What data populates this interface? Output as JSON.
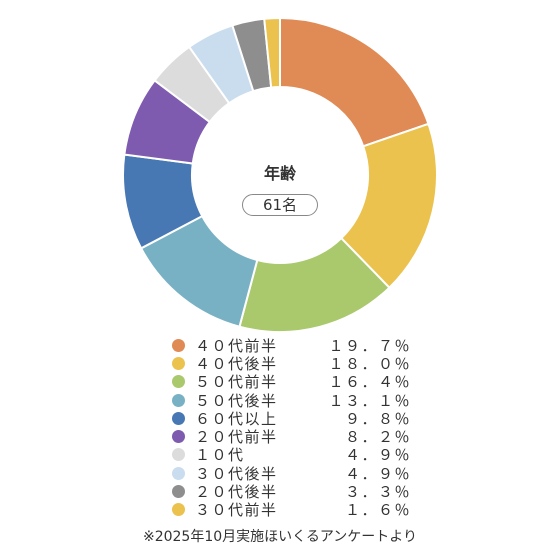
{
  "chart_data": {
    "type": "pie",
    "title": "年齢",
    "total_label": "61名",
    "slices": [
      {
        "label": "４０代前半",
        "value": 19.7,
        "value_label": "１９．７％",
        "color": "#E08A55"
      },
      {
        "label": "４０代後半",
        "value": 18.0,
        "value_label": "１８．０％",
        "color": "#EBC24E"
      },
      {
        "label": "５０代前半",
        "value": 16.4,
        "value_label": "１６．４％",
        "color": "#AAC86C"
      },
      {
        "label": "５０代後半",
        "value": 13.1,
        "value_label": "１３．１％",
        "color": "#79B1C4"
      },
      {
        "label": "６０代以上",
        "value": 9.8,
        "value_label": "９．８％",
        "color": "#4878B3"
      },
      {
        "label": "２０代前半",
        "value": 8.2,
        "value_label": "８．２％",
        "color": "#7E5BAF"
      },
      {
        "label": "１０代",
        "value": 4.9,
        "value_label": "４．９％",
        "color": "#DCDCDC"
      },
      {
        "label": "３０代後半",
        "value": 4.9,
        "value_label": "４．９％",
        "color": "#C9DDEF"
      },
      {
        "label": "２０代後半",
        "value": 3.3,
        "value_label": "３．３％",
        "color": "#8E8E8E"
      },
      {
        "label": "３０代前半",
        "value": 1.6,
        "value_label": "１．６％",
        "color": "#EBC24E"
      }
    ],
    "legend_position": "bottom"
  },
  "footnote": "※2025年10月実施ほいくるアンケートより"
}
